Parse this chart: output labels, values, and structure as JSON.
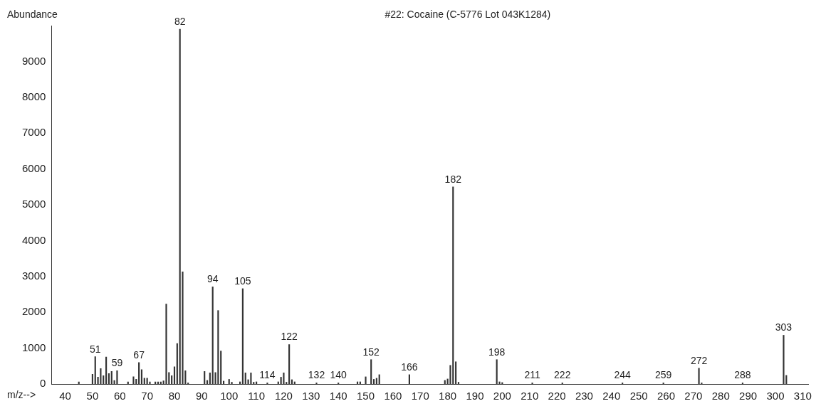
{
  "chart_data": {
    "type": "bar",
    "title": "#22: Cocaine (C-5776 Lot 043K1284)",
    "xlabel": "m/z-->",
    "ylabel": "Abundance",
    "x": [
      45,
      50,
      51,
      52,
      53,
      54,
      55,
      56,
      57,
      58,
      59,
      63,
      65,
      66,
      67,
      68,
      69,
      70,
      71,
      73,
      74,
      75,
      76,
      77,
      78,
      79,
      80,
      81,
      82,
      83,
      84,
      85,
      91,
      92,
      93,
      94,
      95,
      96,
      97,
      98,
      100,
      101,
      104,
      105,
      106,
      107,
      108,
      109,
      110,
      114,
      118,
      119,
      120,
      121,
      122,
      123,
      124,
      132,
      140,
      147,
      148,
      150,
      152,
      153,
      154,
      155,
      166,
      179,
      180,
      181,
      182,
      183,
      184,
      198,
      199,
      200,
      211,
      222,
      244,
      259,
      272,
      273,
      288,
      303,
      304
    ],
    "values": [
      60,
      270,
      760,
      190,
      430,
      230,
      750,
      290,
      350,
      100,
      370,
      60,
      200,
      130,
      600,
      400,
      160,
      160,
      60,
      60,
      60,
      60,
      90,
      2230,
      320,
      230,
      480,
      1130,
      9900,
      3130,
      370,
      30,
      350,
      100,
      310,
      2710,
      320,
      2050,
      920,
      80,
      130,
      50,
      60,
      2660,
      310,
      120,
      310,
      50,
      60,
      30,
      60,
      190,
      310,
      50,
      1100,
      120,
      60,
      30,
      30,
      60,
      60,
      200,
      680,
      130,
      160,
      260,
      260,
      100,
      140,
      520,
      5500,
      620,
      50,
      680,
      60,
      40,
      30,
      30,
      30,
      30,
      440,
      30,
      30,
      1360,
      240
    ],
    "annotations": [
      {
        "text": "51",
        "x": 51,
        "y": 760
      },
      {
        "text": "59",
        "x": 59,
        "y": 370
      },
      {
        "text": "67",
        "x": 67,
        "y": 600
      },
      {
        "text": "82",
        "x": 82,
        "y": 9900
      },
      {
        "text": "94",
        "x": 94,
        "y": 2710
      },
      {
        "text": "105",
        "x": 105,
        "y": 2660
      },
      {
        "text": "114",
        "x": 114,
        "y": 30
      },
      {
        "text": "122",
        "x": 122,
        "y": 1100
      },
      {
        "text": "132",
        "x": 132,
        "y": 30
      },
      {
        "text": "140",
        "x": 140,
        "y": 30
      },
      {
        "text": "152",
        "x": 152,
        "y": 680
      },
      {
        "text": "166",
        "x": 166,
        "y": 260
      },
      {
        "text": "182",
        "x": 182,
        "y": 5500
      },
      {
        "text": "198",
        "x": 198,
        "y": 680
      },
      {
        "text": "211",
        "x": 211,
        "y": 30
      },
      {
        "text": "222",
        "x": 222,
        "y": 30
      },
      {
        "text": "244",
        "x": 244,
        "y": 30
      },
      {
        "text": "259",
        "x": 259,
        "y": 30
      },
      {
        "text": "272",
        "x": 272,
        "y": 440
      },
      {
        "text": "288",
        "x": 288,
        "y": 30
      },
      {
        "text": "303",
        "x": 303,
        "y": 1360
      }
    ],
    "color": "#333333",
    "xlim": [
      35,
      312
    ],
    "ylim": [
      0,
      10000
    ],
    "xticks": [
      40,
      50,
      60,
      70,
      80,
      90,
      100,
      110,
      120,
      130,
      140,
      150,
      160,
      170,
      180,
      190,
      200,
      210,
      220,
      230,
      240,
      250,
      260,
      270,
      280,
      290,
      300,
      310
    ],
    "yticks": [
      0,
      1000,
      2000,
      3000,
      4000,
      5000,
      6000,
      7000,
      8000,
      9000
    ]
  }
}
